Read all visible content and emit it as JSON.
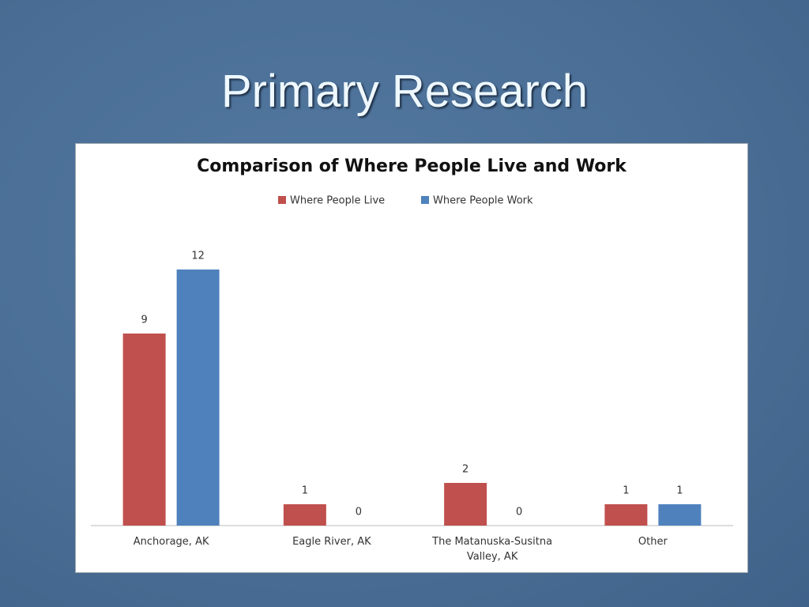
{
  "slide": {
    "title": "Primary Research"
  },
  "chart_data": {
    "type": "bar",
    "title": "Comparison of Where People Live and Work",
    "categories": [
      "Anchorage, AK",
      "Eagle River, AK",
      "The Matanuska-Susitna Valley, AK",
      "Other"
    ],
    "series": [
      {
        "name": "Where People Live",
        "color": "#c0504d",
        "values": [
          9,
          1,
          2,
          1
        ]
      },
      {
        "name": "Where People Work",
        "color": "#4f81bd",
        "values": [
          12,
          0,
          0,
          1
        ]
      }
    ],
    "ylim": [
      0,
      14
    ],
    "legend": "top"
  }
}
